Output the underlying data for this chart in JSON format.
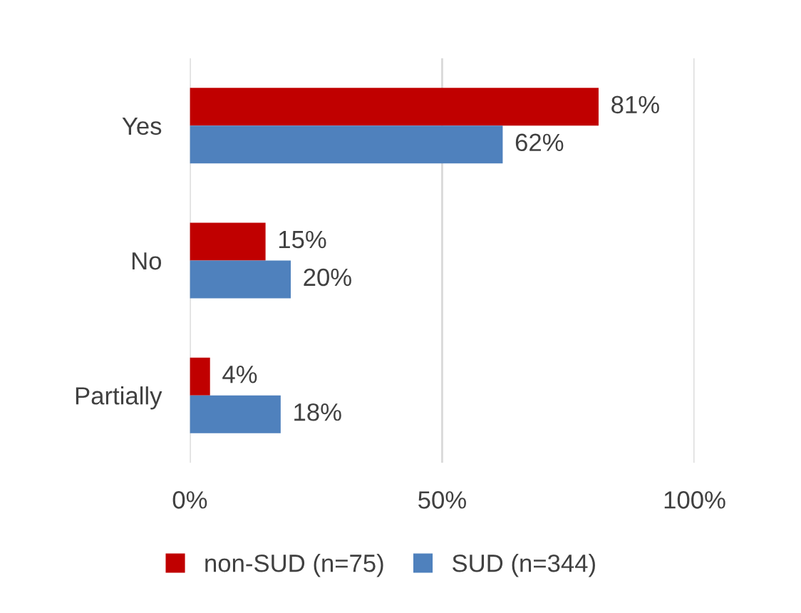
{
  "chart_data": {
    "type": "bar",
    "orientation": "horizontal",
    "categories": [
      "Yes",
      "No",
      "Partially"
    ],
    "series": [
      {
        "name": "non-SUD (n=75)",
        "color": "#c00000",
        "values": [
          81,
          15,
          4
        ],
        "value_labels": [
          "81%",
          "15%",
          "4%"
        ]
      },
      {
        "name": "SUD (n=344)",
        "color": "#4f81bd",
        "values": [
          62,
          20,
          18
        ],
        "value_labels": [
          "62%",
          "20%",
          "18%"
        ]
      }
    ],
    "xlim": [
      0,
      100
    ],
    "xticks": [
      {
        "value": 0,
        "label": "0%"
      },
      {
        "value": 50,
        "label": "50%"
      },
      {
        "value": 100,
        "label": "100%"
      }
    ],
    "grid": "x",
    "legend": "bottom"
  }
}
